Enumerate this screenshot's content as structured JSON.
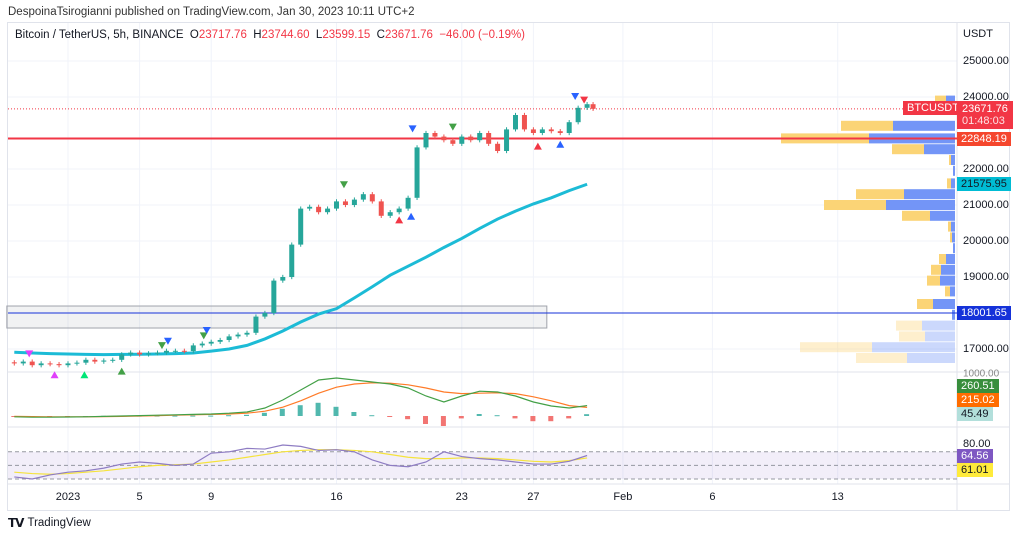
{
  "publisher_line": "DespoinaTsirogianni published on TradingView.com, Jan 30, 2023 10:11 UTC+2",
  "legend": {
    "symbol": "Bitcoin / TetherUS, 5h, BINANCE",
    "o_label": "O",
    "o": "23717.76",
    "h_label": "H",
    "h": "23744.60",
    "l_label": "L",
    "l": "23599.15",
    "c_label": "C",
    "c": "23671.76",
    "change": "−46.00 (−0.19%)"
  },
  "footer": {
    "logo_text": "TradingView"
  },
  "colors": {
    "up": "#26a69a",
    "down": "#ef5350",
    "ema": "#1cbbd6",
    "macd": "#43a047",
    "signal": "#ff7b28",
    "rsi": "#8e7cc3",
    "rsi_ma": "#f5e33c",
    "profile_up": "#6b8ff7",
    "profile_down": "#fbd26f",
    "red_line": "#f23645",
    "blue_line": "#1532d9"
  },
  "chart_data": {
    "type": "candlestick",
    "currency_label": "USDT",
    "price_ticks": [
      "25000.00",
      "24000.00",
      "22000.00",
      "21000.00",
      "20000.00",
      "19000.00",
      "17000.00"
    ],
    "time_ticks": [
      {
        "label": "2023",
        "date": "2023-01-01"
      },
      {
        "label": "5",
        "date": "2023-01-05"
      },
      {
        "label": "9",
        "date": "2023-01-09"
      },
      {
        "label": "16",
        "date": "2023-01-16"
      },
      {
        "label": "23",
        "date": "2023-01-23"
      },
      {
        "label": "27",
        "date": "2023-01-27"
      },
      {
        "label": "Feb",
        "date": "2023-02-01"
      },
      {
        "label": "6",
        "date": "2023-02-06"
      },
      {
        "label": "13",
        "date": "2023-02-13"
      }
    ],
    "candles": [
      [
        "2022-12-29T00",
        16600
      ],
      [
        "2022-12-29T12",
        16650
      ],
      [
        "2022-12-30T00",
        16550
      ],
      [
        "2022-12-30T12",
        16600
      ],
      [
        "2022-12-31T00",
        16580
      ],
      [
        "2022-12-31T12",
        16550
      ],
      [
        "2023-01-01T00",
        16600
      ],
      [
        "2023-01-01T12",
        16620
      ],
      [
        "2023-01-02T00",
        16700
      ],
      [
        "2023-01-02T12",
        16650
      ],
      [
        "2023-01-03T00",
        16680
      ],
      [
        "2023-01-03T12",
        16700
      ],
      [
        "2023-01-04T00",
        16850
      ],
      [
        "2023-01-04T12",
        16900
      ],
      [
        "2023-01-05T00",
        16850
      ],
      [
        "2023-01-05T12",
        16880
      ],
      [
        "2023-01-06T00",
        16900
      ],
      [
        "2023-01-06T12",
        16950
      ],
      [
        "2023-01-07T00",
        16950
      ],
      [
        "2023-01-07T12",
        16940
      ],
      [
        "2023-01-08T00",
        17100
      ],
      [
        "2023-01-08T12",
        17150
      ],
      [
        "2023-01-09T00",
        17200
      ],
      [
        "2023-01-09T12",
        17250
      ],
      [
        "2023-01-10T00",
        17350
      ],
      [
        "2023-01-10T12",
        17400
      ],
      [
        "2023-01-11T00",
        17450
      ],
      [
        "2023-01-11T12",
        17900
      ],
      [
        "2023-01-12T00",
        18000
      ],
      [
        "2023-01-12T12",
        18900
      ],
      [
        "2023-01-13T00",
        19000
      ],
      [
        "2023-01-13T12",
        19900
      ],
      [
        "2023-01-14T00",
        20900
      ],
      [
        "2023-01-14T12",
        20950
      ],
      [
        "2023-01-15T00",
        20800
      ],
      [
        "2023-01-15T12",
        20900
      ],
      [
        "2023-01-16T00",
        21100
      ],
      [
        "2023-01-16T12",
        21000
      ],
      [
        "2023-01-17T00",
        21150
      ],
      [
        "2023-01-17T12",
        21300
      ],
      [
        "2023-01-18T00",
        21100
      ],
      [
        "2023-01-18T12",
        20700
      ],
      [
        "2023-01-19T00",
        20800
      ],
      [
        "2023-01-19T12",
        20900
      ],
      [
        "2023-01-20T00",
        21200
      ],
      [
        "2023-01-20T12",
        22600
      ],
      [
        "2023-01-21T00",
        23000
      ],
      [
        "2023-01-21T12",
        22900
      ],
      [
        "2023-01-22T00",
        22800
      ],
      [
        "2023-01-22T12",
        22700
      ],
      [
        "2023-01-23T00",
        22900
      ],
      [
        "2023-01-23T12",
        22800
      ],
      [
        "2023-01-24T00",
        23000
      ],
      [
        "2023-01-24T12",
        22700
      ],
      [
        "2023-01-25T00",
        22500
      ],
      [
        "2023-01-25T12",
        23100
      ],
      [
        "2023-01-26T00",
        23500
      ],
      [
        "2023-01-26T12",
        23100
      ],
      [
        "2023-01-27T00",
        23000
      ],
      [
        "2023-01-27T12",
        23100
      ],
      [
        "2023-01-28T00",
        23050
      ],
      [
        "2023-01-28T12",
        23000
      ],
      [
        "2023-01-29T00",
        23300
      ],
      [
        "2023-01-29T12",
        23700
      ],
      [
        "2023-01-30T00",
        23800
      ],
      [
        "2023-01-30T08",
        23671.76
      ]
    ],
    "ema": {
      "start": "2022-12-29",
      "values": [
        16910,
        16890,
        16870,
        16860,
        16850,
        16845,
        16850,
        16855,
        16860,
        16870,
        16890,
        16940,
        17000,
        17100,
        17280,
        17500,
        17750,
        17970,
        18120,
        18420,
        18730,
        19050,
        19300,
        19550,
        19820,
        20070,
        20350,
        20610,
        20830,
        21030,
        21200,
        21400,
        21576
      ]
    },
    "last_price": {
      "symbol": "BTCUSDT",
      "value": "23671.76",
      "countdown": "01:48:03"
    },
    "horizontal_lines": [
      {
        "price": 22848.19,
        "label": "22848.19",
        "color": "#f23645"
      },
      {
        "price": 18001.65,
        "label": "18001.65",
        "color": "#1532d9"
      }
    ],
    "ema_label": "21575.95",
    "zone": {
      "from": "2022-12-28T14",
      "to": "2023-01-27T18",
      "top": 18194,
      "bottom": 17583
    },
    "signals": [
      {
        "t": "2022-12-29T20",
        "p": 16850,
        "dir": "down",
        "color": "#e040fb"
      },
      {
        "t": "2022-12-31T06",
        "p": 16300,
        "dir": "up",
        "color": "#e040fb"
      },
      {
        "t": "2023-01-01T22",
        "p": 16300,
        "dir": "up",
        "color": "#00e676"
      },
      {
        "t": "2023-01-04T00",
        "p": 16400,
        "dir": "up",
        "color": "#43a047"
      },
      {
        "t": "2023-01-06T06",
        "p": 17080,
        "dir": "down",
        "color": "#43a047"
      },
      {
        "t": "2023-01-06T14",
        "p": 17200,
        "dir": "down",
        "color": "#2962ff"
      },
      {
        "t": "2023-01-08T14",
        "p": 17350,
        "dir": "down",
        "color": "#43a047"
      },
      {
        "t": "2023-01-08T18",
        "p": 17500,
        "dir": "down",
        "color": "#2962ff"
      },
      {
        "t": "2023-01-16T10",
        "p": 21550,
        "dir": "down",
        "color": "#43a047"
      },
      {
        "t": "2023-01-20T06",
        "p": 23100,
        "dir": "down",
        "color": "#2962ff"
      },
      {
        "t": "2023-01-22T12",
        "p": 23150,
        "dir": "down",
        "color": "#43a047"
      },
      {
        "t": "2023-01-19T12",
        "p": 20600,
        "dir": "up",
        "color": "#f23645"
      },
      {
        "t": "2023-01-20T04",
        "p": 20700,
        "dir": "up",
        "color": "#2962ff"
      },
      {
        "t": "2023-01-27T06",
        "p": 22650,
        "dir": "up",
        "color": "#f23645"
      },
      {
        "t": "2023-01-28T12",
        "p": 22700,
        "dir": "up",
        "color": "#2962ff"
      },
      {
        "t": "2023-01-29T08",
        "p": 24000,
        "dir": "down",
        "color": "#2962ff"
      },
      {
        "t": "2023-01-29T20",
        "p": 23900,
        "dir": "down",
        "color": "#f23645"
      }
    ],
    "volume_profile": [
      {
        "price": 23900,
        "sell": 11,
        "buy": 9
      },
      {
        "price": 23650,
        "sell": 11,
        "buy": 16
      },
      {
        "price": 23200,
        "sell": 52,
        "buy": 62
      },
      {
        "price": 22850,
        "sell": 88,
        "buy": 86
      },
      {
        "price": 22550,
        "sell": 32,
        "buy": 31
      },
      {
        "price": 22250,
        "sell": 2,
        "buy": 4
      },
      {
        "price": 21950,
        "sell": 0,
        "buy": 2
      },
      {
        "price": 21600,
        "sell": 4,
        "buy": 4
      },
      {
        "price": 21300,
        "sell": 48,
        "buy": 51
      },
      {
        "price": 21000,
        "sell": 62,
        "buy": 69
      },
      {
        "price": 20700,
        "sell": 28,
        "buy": 25
      },
      {
        "price": 20400,
        "sell": 3,
        "buy": 4
      },
      {
        "price": 20100,
        "sell": 2,
        "buy": 3
      },
      {
        "price": 19800,
        "sell": 0,
        "buy": 2
      },
      {
        "price": 19500,
        "sell": 7,
        "buy": 9
      },
      {
        "price": 19200,
        "sell": 10,
        "buy": 14
      },
      {
        "price": 18900,
        "sell": 13,
        "buy": 15
      },
      {
        "price": 18600,
        "sell": 5,
        "buy": 5
      },
      {
        "price": 18250,
        "sell": 16,
        "buy": 22
      },
      {
        "price": 17950,
        "sell": 0,
        "buy": 3
      },
      {
        "price": 17650,
        "sell": 26,
        "buy": 33
      },
      {
        "price": 17350,
        "sell": 26,
        "buy": 30
      },
      {
        "price": 17050,
        "sell": 72,
        "buy": 83
      },
      {
        "price": 16750,
        "sell": 51,
        "buy": 48
      }
    ],
    "macd": {
      "top_tick": "1000.00",
      "labels": {
        "macd": "260.51",
        "signal": "215.02",
        "hist": "45.49"
      },
      "start": "2022-12-29",
      "macd": [
        -20,
        -30,
        -30,
        -25,
        -20,
        -10,
        0,
        10,
        20,
        30,
        40,
        50,
        70,
        100,
        200,
        400,
        650,
        900,
        950,
        900,
        850,
        800,
        700,
        500,
        350,
        500,
        620,
        600,
        500,
        350,
        250,
        200,
        260.51
      ],
      "signal": [
        -10,
        -15,
        -20,
        -22,
        -20,
        -15,
        -10,
        0,
        10,
        20,
        30,
        40,
        50,
        70,
        120,
        220,
        380,
        570,
        720,
        800,
        830,
        820,
        780,
        700,
        600,
        560,
        570,
        580,
        560,
        480,
        380,
        260,
        215.02
      ]
    },
    "rsi": {
      "top_tick": "80.00",
      "labels": {
        "rsi": "64.56",
        "ma": "61.01"
      },
      "bands": [
        70,
        50,
        30
      ],
      "start": "2022-12-29",
      "rsi": [
        33,
        30,
        36,
        40,
        42,
        46,
        52,
        55,
        53,
        50,
        52,
        68,
        70,
        75,
        74,
        80,
        78,
        72,
        73,
        70,
        58,
        50,
        48,
        55,
        70,
        63,
        60,
        58,
        55,
        52,
        52,
        56,
        64.56
      ],
      "ma": [
        40,
        38,
        37,
        38,
        40,
        42,
        45,
        48,
        50,
        51,
        52,
        55,
        58,
        62,
        66,
        70,
        72,
        73,
        73,
        72,
        70,
        66,
        62,
        60,
        60,
        61,
        61,
        60,
        58,
        56,
        55,
        57,
        61.01
      ]
    }
  }
}
